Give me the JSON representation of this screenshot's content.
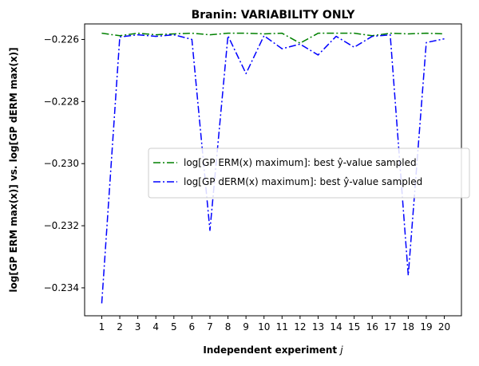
{
  "chart_data": {
    "type": "line",
    "title": "Branin: VARIABILITY ONLY",
    "xlabel": "Independent experiment j",
    "ylabel": "log[GP ERM max(x)] vs. log[GP dERM max(x)]",
    "x": [
      1,
      2,
      3,
      4,
      5,
      6,
      7,
      8,
      9,
      10,
      11,
      12,
      13,
      14,
      15,
      16,
      17,
      18,
      19,
      20
    ],
    "xticks": [
      "1",
      "2",
      "3",
      "4",
      "5",
      "6",
      "7",
      "8",
      "9",
      "10",
      "11",
      "12",
      "13",
      "14",
      "15",
      "16",
      "17",
      "18",
      "19",
      "20"
    ],
    "yticks": [
      "−0.234",
      "−0.232",
      "−0.230",
      "−0.228",
      "−0.226"
    ],
    "ytick_values": [
      -0.234,
      -0.232,
      -0.23,
      -0.228,
      -0.226
    ],
    "xlim": [
      0.05,
      20.95
    ],
    "ylim": [
      -0.2349,
      -0.2255
    ],
    "grid": false,
    "legend_placement": "center-right",
    "series": [
      {
        "name": "log[GP ERM(x) maximum]: best ŷ-value sampled",
        "color": "#008000",
        "style": "dashdot",
        "values": [
          -0.2258,
          -0.22588,
          -0.2258,
          -0.22585,
          -0.22582,
          -0.2258,
          -0.22585,
          -0.2258,
          -0.2258,
          -0.22582,
          -0.2258,
          -0.22612,
          -0.2258,
          -0.2258,
          -0.2258,
          -0.22588,
          -0.2258,
          -0.22582,
          -0.2258,
          -0.22582
        ]
      },
      {
        "name": "log[GP dERM(x) maximum]: best ŷ-value sampled",
        "color": "#0000ff",
        "style": "dashdot",
        "values": [
          -0.2345,
          -0.22592,
          -0.22585,
          -0.2259,
          -0.22585,
          -0.226,
          -0.23215,
          -0.22588,
          -0.2271,
          -0.22588,
          -0.2263,
          -0.22615,
          -0.2265,
          -0.2259,
          -0.22625,
          -0.2259,
          -0.22585,
          -0.2336,
          -0.2261,
          -0.22598
        ]
      }
    ]
  }
}
